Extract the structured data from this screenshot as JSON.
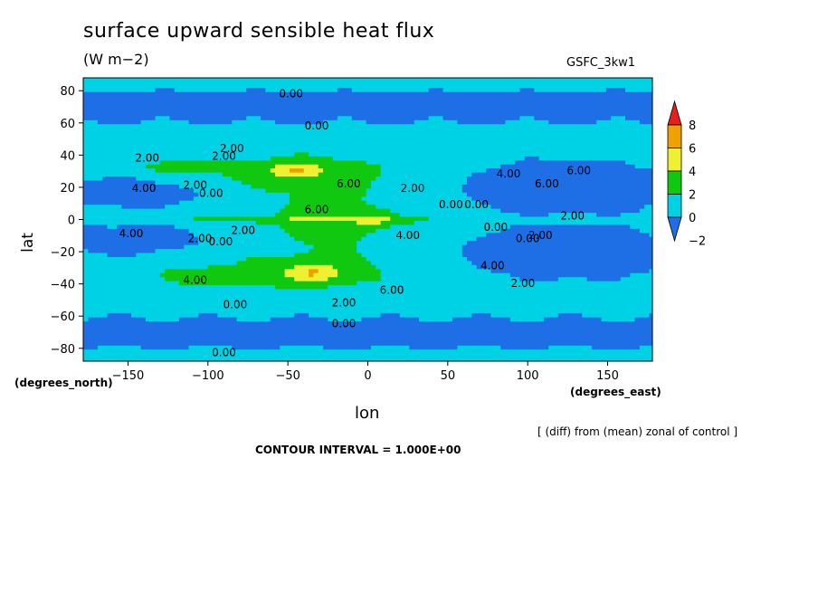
{
  "header": {
    "title": "surface upward sensible heat flux",
    "units": "(W m−2)",
    "model": "GSFC_3kw1"
  },
  "footer": {
    "note": "[ (diff) from (mean) zonal of control ]",
    "interval": "CONTOUR INTERVAL = 1.000E+00"
  },
  "chart_data": {
    "type": "heatmap",
    "title": "surface upward sensible heat flux",
    "units": "W m-2",
    "xlabel": "lon",
    "ylabel": "lat",
    "xunits": "(degrees_east)",
    "yunits": "(degrees_north)",
    "xlim": [
      -178,
      178
    ],
    "ylim": [
      -88,
      88
    ],
    "xticks": [
      -150,
      -100,
      -50,
      0,
      50,
      100,
      150
    ],
    "xtick_labels": [
      "−150",
      "−100",
      "−50",
      "0",
      "50",
      "100",
      "150"
    ],
    "yticks": [
      80,
      60,
      40,
      20,
      0,
      -20,
      -40,
      -60,
      -80
    ],
    "ytick_labels": [
      "80",
      "60",
      "40",
      "20",
      "0",
      "−20",
      "−40",
      "−60",
      "−80"
    ],
    "colorbar": {
      "levels": [
        -2,
        0,
        2,
        4,
        6,
        8
      ],
      "labels": [
        "8",
        "6",
        "4",
        "2",
        "0",
        "−2"
      ],
      "colors": [
        "#1e6ee6",
        "#00d2e6",
        "#10c810",
        "#f0f032",
        "#f0a000",
        "#e61e1e"
      ]
    },
    "contour_labels": [
      {
        "text": "0.00",
        "lon": -48,
        "lat": 78
      },
      {
        "text": "0.00",
        "lon": -32,
        "lat": 58
      },
      {
        "text": "2.00",
        "lon": -138,
        "lat": 38
      },
      {
        "text": "2.00",
        "lon": -90,
        "lat": 39
      },
      {
        "text": "2.00",
        "lon": -85,
        "lat": 44
      },
      {
        "text": "4.00",
        "lon": -140,
        "lat": 19
      },
      {
        "text": "2.00",
        "lon": -108,
        "lat": 21
      },
      {
        "text": "0.00",
        "lon": -98,
        "lat": 16
      },
      {
        "text": "6.00",
        "lon": -12,
        "lat": 22
      },
      {
        "text": "6.00",
        "lon": -32,
        "lat": 6
      },
      {
        "text": "2.00",
        "lon": 28,
        "lat": 19
      },
      {
        "text": "0.00",
        "lon": 52,
        "lat": 9
      },
      {
        "text": "0.00",
        "lon": 68,
        "lat": 9
      },
      {
        "text": "2.00",
        "lon": 128,
        "lat": 2
      },
      {
        "text": "4.00",
        "lon": 88,
        "lat": 28
      },
      {
        "text": "6.00",
        "lon": 112,
        "lat": 22
      },
      {
        "text": "6.00",
        "lon": 132,
        "lat": 30
      },
      {
        "text": "4.00",
        "lon": -148,
        "lat": -9
      },
      {
        "text": "2.00",
        "lon": -105,
        "lat": -12
      },
      {
        "text": "0.00",
        "lon": -92,
        "lat": -14
      },
      {
        "text": "2.00",
        "lon": -78,
        "lat": -7
      },
      {
        "text": "4.00",
        "lon": 25,
        "lat": -10
      },
      {
        "text": "0.00",
        "lon": 80,
        "lat": -5
      },
      {
        "text": "0.00",
        "lon": 100,
        "lat": -12
      },
      {
        "text": "2.00",
        "lon": 108,
        "lat": -10
      },
      {
        "text": "4.00",
        "lon": 78,
        "lat": -29
      },
      {
        "text": "2.00",
        "lon": 97,
        "lat": -40
      },
      {
        "text": "4.00",
        "lon": -108,
        "lat": -38
      },
      {
        "text": "6.00",
        "lon": 15,
        "lat": -44
      },
      {
        "text": "2.00",
        "lon": -15,
        "lat": -52
      },
      {
        "text": "0.00",
        "lon": -83,
        "lat": -53
      },
      {
        "text": "0.00",
        "lon": -15,
        "lat": -65
      },
      {
        "text": "0.00",
        "lon": -90,
        "lat": -83
      }
    ]
  }
}
